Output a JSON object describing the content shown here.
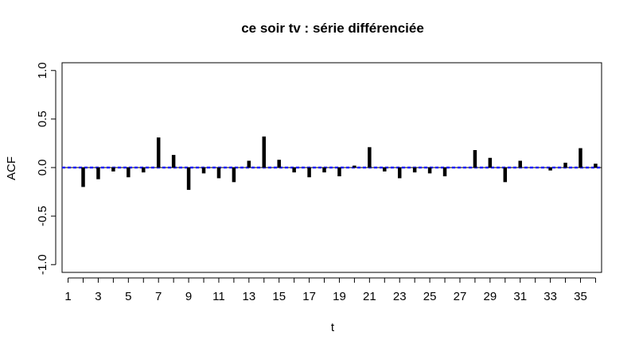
{
  "chart_data": {
    "type": "bar",
    "title": "ce soir tv : série différenciée",
    "xlabel": "t",
    "ylabel": "ACF",
    "xlim": [
      0.6,
      36.4
    ],
    "ylim": [
      -1.08,
      1.08
    ],
    "x_tick_values": [
      1,
      3,
      5,
      7,
      9,
      11,
      13,
      15,
      17,
      19,
      21,
      23,
      25,
      27,
      29,
      31,
      33,
      35
    ],
    "x_tick_marks": [
      1,
      2,
      3,
      4,
      5,
      6,
      7,
      8,
      9,
      10,
      11,
      12,
      13,
      14,
      15,
      16,
      17,
      18,
      19,
      20,
      21,
      22,
      23,
      24,
      25,
      26,
      27,
      28,
      29,
      30,
      31,
      32,
      33,
      34,
      35,
      36
    ],
    "y_ticks": [
      -1.0,
      -0.5,
      0.0,
      0.5,
      1.0
    ],
    "y_tick_labels": [
      "-1.0",
      "-0.5",
      "0.0",
      "0.5",
      "1.0"
    ],
    "confidence_band": [
      -0.005,
      0.005
    ],
    "confidence_color": "#1f1fff",
    "x": [
      1,
      2,
      3,
      4,
      5,
      6,
      7,
      8,
      9,
      10,
      11,
      12,
      13,
      14,
      15,
      16,
      17,
      18,
      19,
      20,
      21,
      22,
      23,
      24,
      25,
      26,
      27,
      28,
      29,
      30,
      31,
      32,
      33,
      34,
      35,
      36
    ],
    "values": [
      0.0,
      -0.2,
      -0.12,
      -0.04,
      -0.1,
      -0.05,
      0.31,
      0.13,
      -0.23,
      -0.06,
      -0.11,
      -0.15,
      0.07,
      0.32,
      0.08,
      -0.05,
      -0.1,
      -0.05,
      -0.09,
      0.02,
      0.21,
      -0.04,
      -0.11,
      -0.05,
      -0.06,
      -0.09,
      0.0,
      0.18,
      0.1,
      -0.15,
      0.07,
      0.0,
      -0.03,
      0.05,
      0.2,
      0.04
    ],
    "grid": false,
    "legend": "none"
  }
}
